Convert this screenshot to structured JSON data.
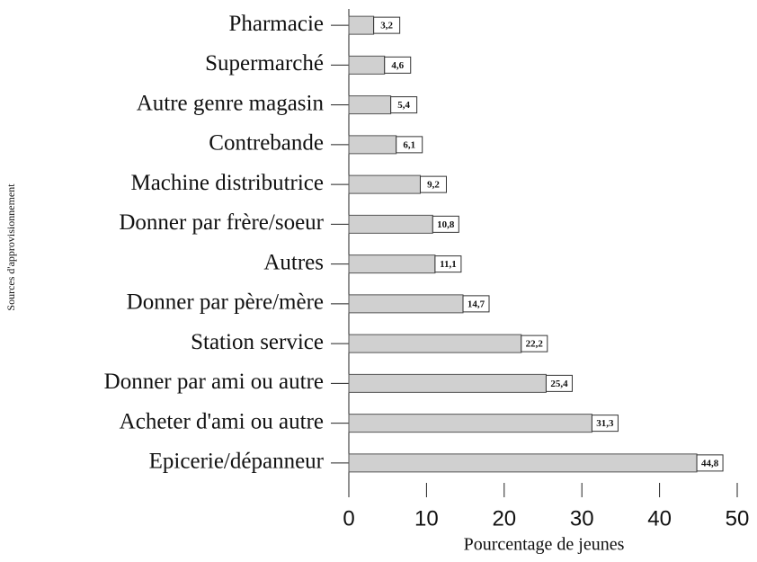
{
  "chart_data": {
    "type": "bar",
    "orientation": "horizontal",
    "xlabel": "Pourcentage de jeunes",
    "ylabel": "Sources d'approvisionnement",
    "categories": [
      "Pharmacie",
      "Supermarché",
      "Autre genre magasin",
      "Contrebande",
      "Machine distributrice",
      "Donner par frère/soeur",
      "Autres",
      "Donner par père/mère",
      "Station service",
      "Donner par ami ou autre",
      "Acheter d'ami ou autre",
      "Epicerie/dépanneur"
    ],
    "values": [
      3.2,
      4.6,
      5.4,
      6.1,
      9.2,
      10.8,
      11.1,
      14.7,
      22.2,
      25.4,
      31.3,
      44.8
    ],
    "value_labels": [
      "3,2",
      "4,6",
      "5,4",
      "6,1",
      "9,2",
      "10,8",
      "11,1",
      "14,7",
      "22,2",
      "25,4",
      "31,3",
      "44,8"
    ],
    "color": "#d0d0d0",
    "xlim": [
      0,
      50
    ],
    "xticks": [
      0,
      10,
      20,
      30,
      40,
      50
    ]
  }
}
